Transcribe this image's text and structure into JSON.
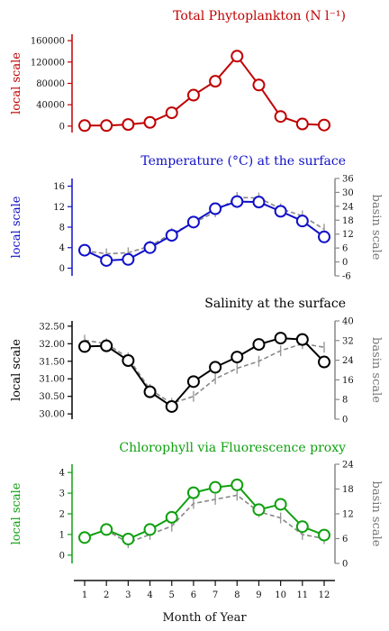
{
  "figure": {
    "xlabel": "Month of Year",
    "months": [
      1,
      2,
      3,
      4,
      5,
      6,
      7,
      8,
      9,
      10,
      11,
      12
    ]
  },
  "chart_data": [
    {
      "type": "line",
      "title": "Total Phytoplankton (N l⁻¹)",
      "color": "#c00000",
      "ylabel_left": "local scale",
      "ylabel_right": "",
      "left_ticks": [
        0,
        40000,
        80000,
        120000,
        160000
      ],
      "left_ylim": [
        -12000,
        172000
      ],
      "x": [
        1,
        2,
        3,
        4,
        5,
        6,
        7,
        8,
        9,
        10,
        11,
        12
      ],
      "values": [
        1000,
        1000,
        3000,
        7000,
        25000,
        58000,
        84000,
        131000,
        77000,
        18000,
        4000,
        2000
      ],
      "basin": null
    },
    {
      "type": "line",
      "title": "Temperature (°C) at the surface",
      "color": "#1010c8",
      "ylabel_left": "local scale",
      "ylabel_right": "basin scale",
      "left_ticks": [
        0,
        4,
        8,
        12,
        16
      ],
      "left_ylim": [
        -1.5,
        17.5
      ],
      "right_ticks": [
        -6,
        0,
        6,
        12,
        18,
        24,
        30,
        36
      ],
      "right_ylim": [
        -6,
        36
      ],
      "x": [
        1,
        2,
        3,
        4,
        5,
        6,
        7,
        8,
        9,
        10,
        11,
        12
      ],
      "values": [
        3.5,
        1.5,
        1.7,
        4.0,
        6.4,
        9.0,
        11.6,
        13.0,
        12.9,
        11.1,
        9.2,
        6.1
      ],
      "basin": {
        "name": "basin scale",
        "values": [
          3.4,
          2.8,
          3.0,
          4.3,
          6.8,
          8.8,
          11.0,
          13.8,
          13.7,
          11.6,
          10.2,
          7.6
        ]
      }
    },
    {
      "type": "line",
      "title": "Salinity at the surface",
      "color": "#000000",
      "ylabel_left": "local scale",
      "ylabel_right": "basin scale",
      "left_ticks": [
        30.0,
        30.5,
        31.0,
        31.5,
        32.0,
        32.5
      ],
      "left_tick_labels": [
        "30.00",
        "30.50",
        "31.00",
        "31.50",
        "32.00",
        "32.50"
      ],
      "left_ylim": [
        29.85,
        32.65
      ],
      "right_ticks": [
        0,
        8,
        16,
        24,
        32,
        40
      ],
      "right_ylim": [
        0,
        40
      ],
      "x": [
        1,
        2,
        3,
        4,
        5,
        6,
        7,
        8,
        9,
        10,
        11,
        12
      ],
      "values": [
        31.92,
        31.94,
        31.52,
        30.63,
        30.21,
        30.92,
        31.33,
        31.62,
        31.98,
        32.16,
        32.12,
        31.48
      ],
      "basin": {
        "name": "basin scale",
        "values": [
          32.1,
          32.0,
          31.6,
          30.7,
          30.3,
          30.5,
          31.0,
          31.3,
          31.5,
          31.8,
          32.0,
          31.9
        ]
      }
    },
    {
      "type": "line",
      "title": "Chlorophyll via Fluorescence proxy",
      "color": "#10a010",
      "ylabel_left": "local scale",
      "ylabel_right": "basin scale",
      "left_ticks": [
        0,
        1,
        2,
        3,
        4
      ],
      "left_ylim": [
        -0.4,
        4.4
      ],
      "right_ticks": [
        0,
        6,
        12,
        18,
        24
      ],
      "right_ylim": [
        0,
        24
      ],
      "x": [
        1,
        2,
        3,
        4,
        5,
        6,
        7,
        8,
        9,
        10,
        11,
        12
      ],
      "values": [
        0.85,
        1.24,
        0.78,
        1.24,
        1.83,
        3.02,
        3.28,
        3.4,
        2.2,
        2.46,
        1.38,
        0.97
      ],
      "basin": {
        "name": "basin scale",
        "values": [
          0.9,
          1.2,
          0.6,
          1.0,
          1.4,
          2.5,
          2.7,
          2.9,
          2.1,
          1.8,
          1.0,
          0.8
        ]
      }
    }
  ]
}
